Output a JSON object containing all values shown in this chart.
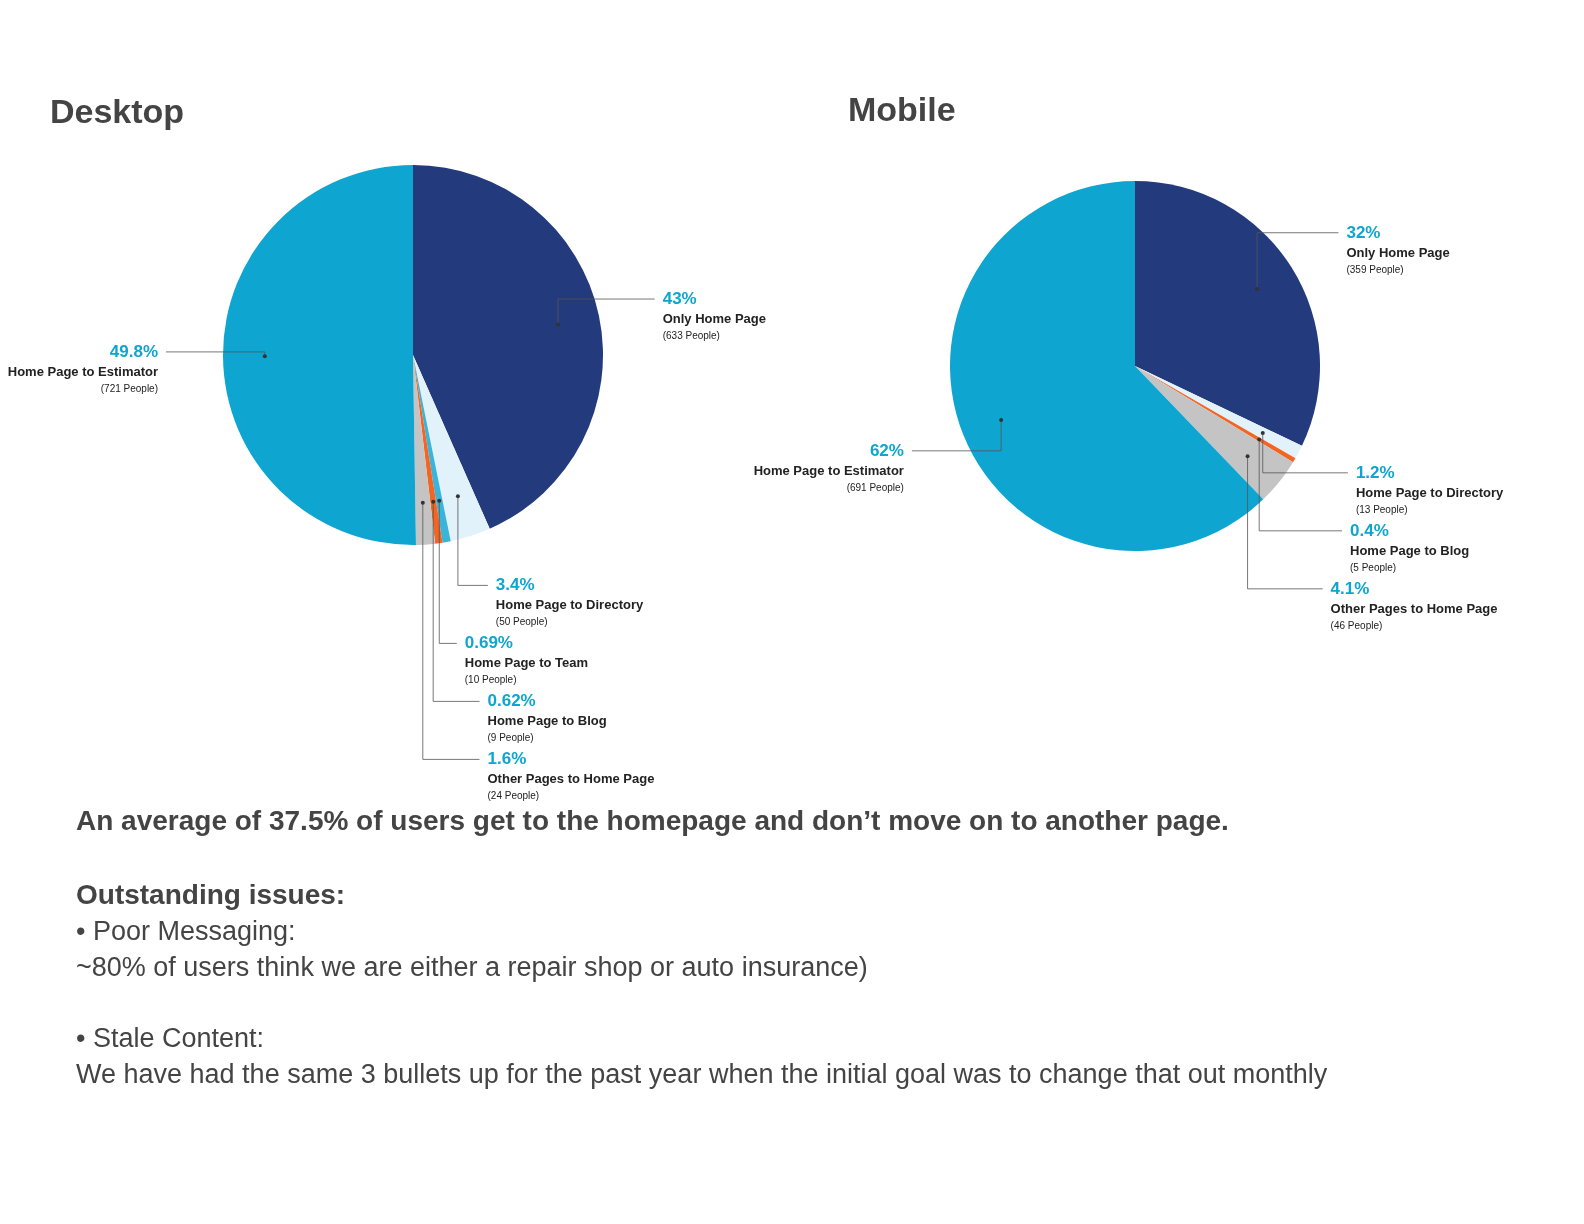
{
  "chart_data": [
    {
      "type": "pie",
      "title": "Desktop",
      "categories": [
        "Only Home Page",
        "Home Page to Directory",
        "Home Page to Team",
        "Home Page to Blog",
        "Other Pages to Home Page",
        "Home Page to Estimator"
      ],
      "values": [
        43,
        3.4,
        0.69,
        0.62,
        1.6,
        49.8
      ],
      "value_labels": [
        "43%",
        "3.4%",
        "0.69%",
        "0.62%",
        "1.6%",
        "49.8%"
      ],
      "colors": [
        "#233a7c",
        "#e2f2fa",
        "#3ab5d9",
        "#f26522",
        "#c4c4c4",
        "#0ea5d0"
      ],
      "annotations": [
        {
          "text": "(633 People)",
          "x": "Only Home Page"
        },
        {
          "text": "(50 People)",
          "x": "Home Page to Directory"
        },
        {
          "text": "(10 People)",
          "x": "Home Page to Team"
        },
        {
          "text": "(9 People)",
          "x": "Home Page to Blog"
        },
        {
          "text": "(24 People)",
          "x": "Other Pages to Home Page"
        },
        {
          "text": "(721 People)",
          "x": "Home Page to Estimator"
        }
      ]
    },
    {
      "type": "pie",
      "title": "Mobile",
      "categories": [
        "Only Home Page",
        "Home Page to Directory",
        "Home Page to Blog",
        "Other Pages to Home Page",
        "Home Page to Estimator"
      ],
      "values": [
        32,
        1.2,
        0.4,
        4.1,
        62
      ],
      "value_labels": [
        "32%",
        "1.2%",
        "0.4%",
        "4.1%",
        "62%"
      ],
      "colors": [
        "#233a7c",
        "#e2f2fa",
        "#f26522",
        "#c4c4c4",
        "#0ea5d0"
      ],
      "annotations": [
        {
          "text": "(359 People)",
          "x": "Only Home Page"
        },
        {
          "text": "(13 People)",
          "x": "Home Page to Directory"
        },
        {
          "text": "(5 People)",
          "x": "Home Page to Blog"
        },
        {
          "text": "(46 People)",
          "x": "Other Pages to Home Page"
        },
        {
          "text": "(691 People)",
          "x": "Home Page to Estimator"
        }
      ]
    },
    {
      "type": "other",
      "annotations": [
        "An average of 37.5% of users get to the homepage and don’t move on to another page.",
        "Outstanding issues:",
        "• Poor Messaging:",
        "~80% of users think we are either a repair shop or auto insurance)",
        "• Stale Content:",
        "We have had the same 3 bullets up for the past year when the initial goal was to change that out monthly"
      ]
    }
  ]
}
